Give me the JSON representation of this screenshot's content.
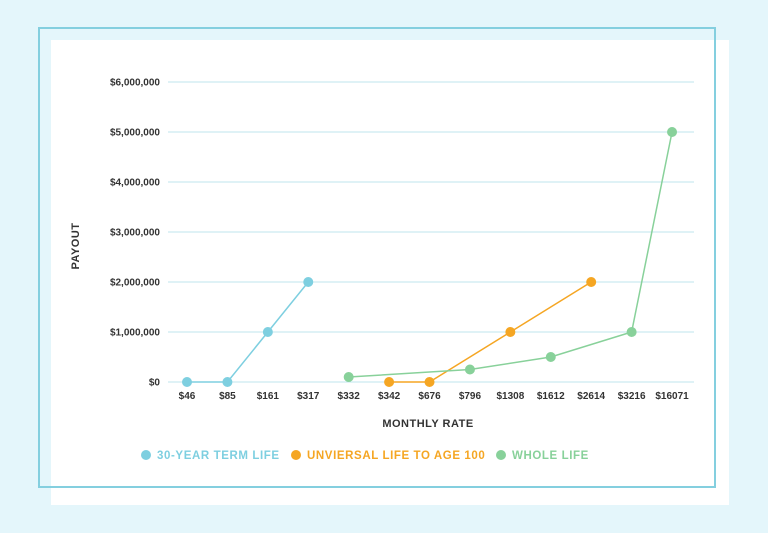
{
  "chart_data": {
    "type": "line",
    "categories": [
      "$46",
      "$85",
      "$161",
      "$317",
      "$332",
      "$342",
      "$676",
      "$796",
      "$1308",
      "$1612",
      "$2614",
      "$3216",
      "$16071"
    ],
    "ylabel": "PAYOUT",
    "xlabel": "MONTHLY RATE",
    "ylim": [
      0,
      6000000
    ],
    "y_ticks": [
      0,
      1000000,
      2000000,
      3000000,
      4000000,
      5000000,
      6000000
    ],
    "y_tick_labels": [
      "$0",
      "$1,000,000",
      "$2,000,000",
      "$3,000,000",
      "$4,000,000",
      "$5,000,000",
      "$6,000,000"
    ],
    "grid": true,
    "legend_position": "bottom",
    "series": [
      {
        "name": "30-YEAR TERM LIFE",
        "color": "#7ecfe0",
        "points": [
          {
            "x": "$46",
            "y": 0
          },
          {
            "x": "$85",
            "y": 0
          },
          {
            "x": "$161",
            "y": 1000000
          },
          {
            "x": "$317",
            "y": 2000000
          }
        ]
      },
      {
        "name": "UNVIERSAL LIFE TO AGE 100",
        "color": "#f5a623",
        "points": [
          {
            "x": "$342",
            "y": 0
          },
          {
            "x": "$676",
            "y": 0
          },
          {
            "x": "$1308",
            "y": 1000000
          },
          {
            "x": "$2614",
            "y": 2000000
          }
        ]
      },
      {
        "name": "WHOLE LIFE",
        "color": "#88d19a",
        "points": [
          {
            "x": "$332",
            "y": 100000
          },
          {
            "x": "$796",
            "y": 250000
          },
          {
            "x": "$1612",
            "y": 500000
          },
          {
            "x": "$3216",
            "y": 1000000
          },
          {
            "x": "$16071",
            "y": 5000000
          }
        ]
      }
    ]
  }
}
